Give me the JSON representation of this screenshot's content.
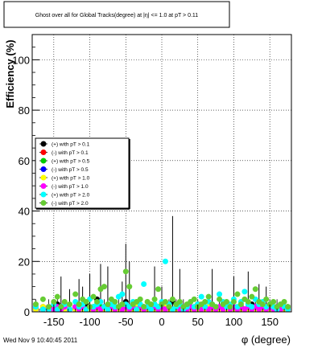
{
  "footer": {
    "timestamp": "Wed Nov  9 10:40:45 2011"
  },
  "chart_data": {
    "type": "scatter",
    "title": "Ghost over all for Global Tracks(degree) at |η| <= 1.0 at pT > 0.11",
    "xlabel": "φ (degree)",
    "ylabel": "Efficiency (%)",
    "xlim": [
      -180,
      180
    ],
    "ylim": [
      0,
      110
    ],
    "xticks": [
      -150,
      -100,
      -50,
      0,
      50,
      100,
      150
    ],
    "yticks": [
      0,
      20,
      40,
      60,
      80,
      100
    ],
    "grid": true,
    "legend_position": "left-middle",
    "x": [
      -175,
      -165,
      -157,
      -150,
      -145,
      -140,
      -135,
      -128,
      -120,
      -115,
      -110,
      -105,
      -100,
      -95,
      -90,
      -85,
      -80,
      -75,
      -70,
      -65,
      -60,
      -55,
      -50,
      -45,
      -40,
      -35,
      -30,
      -25,
      -20,
      -15,
      -10,
      -5,
      0,
      5,
      10,
      15,
      20,
      25,
      30,
      35,
      40,
      45,
      50,
      55,
      60,
      65,
      70,
      75,
      80,
      85,
      90,
      95,
      100,
      105,
      110,
      115,
      120,
      125,
      130,
      135,
      140,
      145,
      150,
      155,
      160,
      165,
      170,
      175
    ],
    "series": [
      {
        "name": "(+) with pT > 0.1",
        "color": "#000000",
        "values": [
          1,
          2,
          1,
          1,
          3,
          2,
          1,
          1,
          2,
          1,
          2,
          3,
          1,
          2,
          5,
          1,
          2,
          1,
          3,
          1,
          2,
          1,
          4,
          2,
          1,
          2,
          1,
          1,
          2,
          1,
          3,
          1,
          2,
          1,
          2,
          4,
          1,
          2,
          1,
          1,
          2,
          1,
          3,
          1,
          2,
          1,
          2,
          1,
          1,
          2,
          3,
          1,
          2,
          1,
          2,
          1,
          1,
          3,
          1,
          2,
          1,
          2,
          1,
          1,
          2,
          1,
          1,
          2
        ]
      },
      {
        "name": "(-) with pT > 0.1",
        "color": "#ff0000",
        "values": [
          1,
          1,
          2,
          1,
          1,
          2,
          1,
          1,
          1,
          2,
          1,
          1,
          2,
          1,
          1,
          1,
          2,
          1,
          1,
          2,
          1,
          1,
          1,
          2,
          1,
          1,
          1,
          2,
          1,
          1,
          1,
          2,
          1,
          1,
          2,
          1,
          1,
          1,
          2,
          1,
          1,
          1,
          2,
          1,
          1,
          1,
          2,
          1,
          1,
          1,
          2,
          1,
          1,
          1,
          2,
          1,
          1,
          1,
          2,
          1,
          1,
          1,
          2,
          1,
          1,
          1,
          2,
          1
        ]
      },
      {
        "name": "(+) with pT > 0.5",
        "color": "#00cc00",
        "values": [
          2,
          1,
          1,
          2,
          1,
          1,
          2,
          1,
          1,
          2,
          1,
          1,
          2,
          1,
          1,
          2,
          1,
          1,
          2,
          1,
          1,
          2,
          1,
          1,
          2,
          1,
          1,
          2,
          1,
          1,
          2,
          1,
          1,
          2,
          1,
          1,
          2,
          1,
          1,
          2,
          1,
          1,
          2,
          1,
          1,
          2,
          1,
          1,
          2,
          1,
          1,
          2,
          1,
          1,
          2,
          1,
          1,
          2,
          1,
          1,
          2,
          1,
          1,
          2,
          1,
          1,
          2,
          1
        ]
      },
      {
        "name": "(-) with pT > 0.5",
        "color": "#0000ff",
        "values": [
          1,
          1,
          1,
          1,
          2,
          1,
          1,
          1,
          1,
          1,
          2,
          1,
          1,
          1,
          1,
          1,
          2,
          1,
          1,
          1,
          1,
          1,
          2,
          1,
          1,
          1,
          1,
          1,
          2,
          1,
          1,
          1,
          1,
          1,
          2,
          1,
          1,
          1,
          1,
          1,
          2,
          1,
          1,
          1,
          1,
          1,
          2,
          1,
          1,
          1,
          1,
          1,
          2,
          1,
          1,
          1,
          1,
          1,
          2,
          1,
          1,
          1,
          1,
          1,
          2,
          1,
          1,
          1
        ]
      },
      {
        "name": "(+) with pT > 1.0",
        "color": "#ffff00",
        "values": [
          1,
          2,
          1,
          1,
          1,
          2,
          1,
          1,
          1,
          2,
          1,
          1,
          1,
          2,
          1,
          1,
          1,
          2,
          1,
          1,
          1,
          2,
          1,
          1,
          1,
          2,
          1,
          1,
          1,
          2,
          1,
          1,
          1,
          2,
          1,
          1,
          1,
          2,
          1,
          1,
          1,
          2,
          1,
          1,
          1,
          2,
          1,
          1,
          1,
          2,
          1,
          1,
          1,
          2,
          1,
          1,
          1,
          2,
          1,
          1,
          1,
          2,
          1,
          1,
          1,
          2,
          1,
          1
        ]
      },
      {
        "name": "(-) with pT > 1.0",
        "color": "#ff00ff",
        "values": [
          2,
          1,
          2,
          1,
          2,
          1,
          2,
          1,
          2,
          1,
          2,
          1,
          2,
          1,
          2,
          1,
          2,
          1,
          2,
          1,
          2,
          1,
          2,
          1,
          2,
          1,
          2,
          1,
          2,
          1,
          2,
          1,
          2,
          1,
          2,
          1,
          2,
          1,
          2,
          1,
          2,
          1,
          2,
          1,
          2,
          1,
          2,
          1,
          2,
          1,
          2,
          1,
          2,
          1,
          2,
          1,
          2,
          1,
          2,
          1,
          2,
          1,
          2,
          1,
          2,
          1,
          2,
          1
        ]
      },
      {
        "name": "(+) with pT > 2.0",
        "color": "#00ffff",
        "values": [
          2,
          1,
          1,
          3,
          1,
          2,
          3,
          1,
          4,
          2,
          3,
          1,
          5,
          2,
          3,
          4,
          2,
          1,
          3,
          2,
          6,
          7,
          3,
          2,
          4,
          1,
          3,
          11,
          2,
          1,
          3,
          2,
          4,
          20,
          3,
          1,
          2,
          3,
          1,
          2,
          4,
          2,
          3,
          6,
          2,
          4,
          3,
          2,
          7,
          4,
          2,
          3,
          5,
          2,
          4,
          8,
          3,
          2,
          5,
          3,
          4,
          2,
          3,
          2,
          1,
          3,
          2,
          1
        ]
      },
      {
        "name": "(-) with pT > 2.0",
        "color": "#66cc33",
        "values": [
          3,
          5,
          2,
          4,
          6,
          2,
          4,
          3,
          7,
          3,
          5,
          4,
          2,
          6,
          4,
          9,
          10,
          3,
          5,
          4,
          2,
          3,
          16,
          10,
          3,
          4,
          5,
          2,
          4,
          3,
          5,
          9,
          3,
          4,
          2,
          5,
          3,
          4,
          2,
          3,
          4,
          5,
          2,
          3,
          4,
          6,
          3,
          2,
          5,
          3,
          4,
          2,
          4,
          7,
          3,
          5,
          4,
          6,
          9,
          4,
          3,
          5,
          3,
          4,
          2,
          3,
          4,
          2
        ]
      }
    ],
    "error_bars": {
      "x": [
        -140,
        -128,
        -115,
        -110,
        -100,
        -85,
        -75,
        -55,
        -50,
        -45,
        -10,
        0,
        15,
        25,
        70,
        100,
        120,
        135,
        145
      ],
      "upper": [
        14,
        9,
        13,
        10,
        15,
        19,
        18,
        12,
        27,
        20,
        18,
        10,
        38,
        17,
        17,
        14,
        16,
        11,
        10
      ]
    }
  }
}
